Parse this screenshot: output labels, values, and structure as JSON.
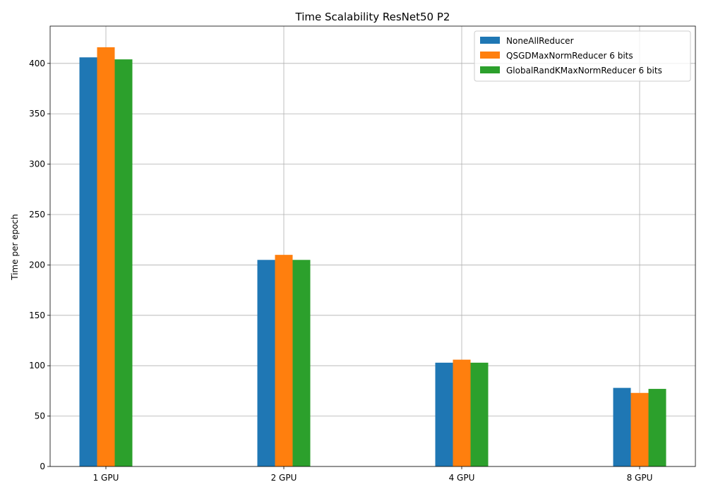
{
  "chart_data": {
    "type": "bar",
    "title": "Time Scalability ResNet50 P2",
    "xlabel": "",
    "ylabel": "Time per epoch",
    "categories": [
      "1 GPU",
      "2 GPU",
      "4 GPU",
      "8 GPU"
    ],
    "series": [
      {
        "name": "NoneAllReducer",
        "color": "#1f77b4",
        "values": [
          406,
          205,
          103,
          78
        ]
      },
      {
        "name": "QSGDMaxNormReducer 6 bits",
        "color": "#ff7f0e",
        "values": [
          416,
          210,
          106,
          73
        ]
      },
      {
        "name": "GlobalRandKMaxNormReducer 6 bits",
        "color": "#2ca02c",
        "values": [
          404,
          205,
          103,
          77
        ]
      }
    ],
    "ylim": [
      0,
      437
    ],
    "yticks": [
      0,
      50,
      100,
      150,
      200,
      250,
      300,
      350,
      400
    ],
    "grid": true,
    "legend_position": "top-right"
  }
}
